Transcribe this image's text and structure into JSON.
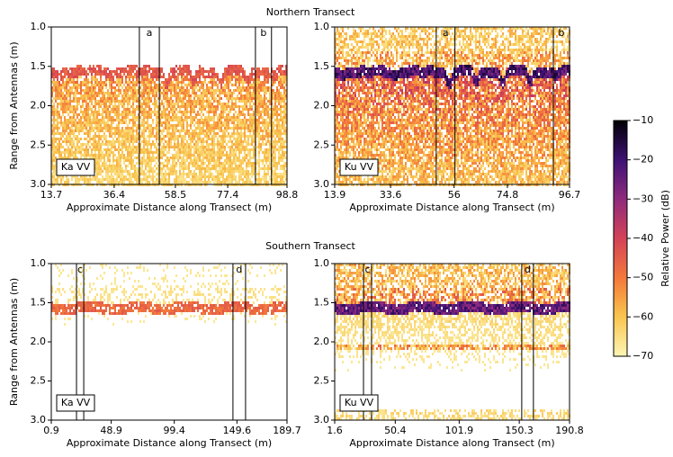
{
  "row_titles": [
    "Northern Transect",
    "Southern Transect"
  ],
  "chart_data": [
    {
      "type": "echogram",
      "xlabel": "Approximate Distance along Transect (m)",
      "ylabel": "Range from Antennas (m)",
      "panel_label": "Ka VV",
      "xlim": [
        13.7,
        98.8
      ],
      "xticks": [
        13.7,
        36.4,
        58.5,
        77.4,
        98.8
      ],
      "ylim": [
        3,
        1
      ],
      "yticks": [
        {
          "value": 1,
          "label": "1.0"
        },
        {
          "value": 1.5,
          "label": "1.5"
        },
        {
          "value": 2,
          "label": "2.0"
        },
        {
          "value": 2.5,
          "label": "2.5"
        },
        {
          "value": 3,
          "label": "3.0"
        }
      ],
      "boxes": [
        {
          "label": "a",
          "x": [
            45.5,
            52.7
          ]
        },
        {
          "label": "b",
          "x": [
            87.4,
            93.2
          ]
        }
      ]
    },
    {
      "type": "echogram",
      "xlabel": "Approximate Distance along Transect (m)",
      "panel_label": "Ku VV",
      "xlim": [
        13.9,
        96.7
      ],
      "xticks": [
        13.9,
        33.6,
        56.0,
        74.8,
        96.7
      ],
      "ylim": [
        3,
        1
      ],
      "yticks": [
        {
          "value": 1,
          "label": "1.0"
        },
        {
          "value": 1.5,
          "label": "1.5"
        },
        {
          "value": 2,
          "label": "2.0"
        },
        {
          "value": 2.5,
          "label": "2.5"
        },
        {
          "value": 3,
          "label": "3.0"
        }
      ],
      "boxes": [
        {
          "label": "a",
          "x": [
            49.7,
            56.3
          ]
        },
        {
          "label": "b",
          "x": [
            91.0,
            96.7
          ]
        }
      ]
    },
    {
      "type": "echogram",
      "xlabel": "Approximate Distance along Transect (m)",
      "ylabel": "Range from Antennas (m)",
      "panel_label": "Ka VV",
      "xlim": [
        0.9,
        189.7
      ],
      "xticks": [
        0.9,
        48.9,
        99.4,
        149.6,
        189.7
      ],
      "ylim": [
        3,
        1
      ],
      "yticks": [
        {
          "value": 1,
          "label": "1.0"
        },
        {
          "value": 1.5,
          "label": "1.5"
        },
        {
          "value": 2,
          "label": "2.0"
        },
        {
          "value": 2.5,
          "label": "2.5"
        },
        {
          "value": 3,
          "label": "3.0"
        }
      ],
      "boxes": [
        {
          "label": "c",
          "x": [
            21.1,
            26.9
          ]
        },
        {
          "label": "d",
          "x": [
            146.4,
            156.5
          ]
        }
      ]
    },
    {
      "type": "echogram",
      "xlabel": "Approximate Distance along Transect (m)",
      "panel_label": "Ku VV",
      "xlim": [
        1.6,
        190.8
      ],
      "xticks": [
        1.6,
        50.4,
        101.9,
        150.3,
        190.8
      ],
      "ylim": [
        3,
        1
      ],
      "yticks": [
        {
          "value": 1,
          "label": "1.0"
        },
        {
          "value": 1.5,
          "label": "1.5"
        },
        {
          "value": 2,
          "label": "2.0"
        },
        {
          "value": 2.5,
          "label": "2.5"
        },
        {
          "value": 3,
          "label": "3.0"
        }
      ],
      "boxes": [
        {
          "label": "c",
          "x": [
            24.8,
            31.3
          ]
        },
        {
          "label": "d",
          "x": [
            152.3,
            161.7
          ]
        }
      ]
    },
    {
      "type": "colorbar",
      "ylabel": "Relative Power (dB)",
      "ylim": [
        -70,
        -10
      ],
      "yticks": [
        {
          "value": -70,
          "label": "−70"
        },
        {
          "value": -60,
          "label": "−60"
        },
        {
          "value": -50,
          "label": "−50"
        },
        {
          "value": -40,
          "label": "−40"
        },
        {
          "value": -30,
          "label": "−30"
        },
        {
          "value": -20,
          "label": "−20"
        },
        {
          "value": -10,
          "label": "−10"
        }
      ]
    }
  ]
}
